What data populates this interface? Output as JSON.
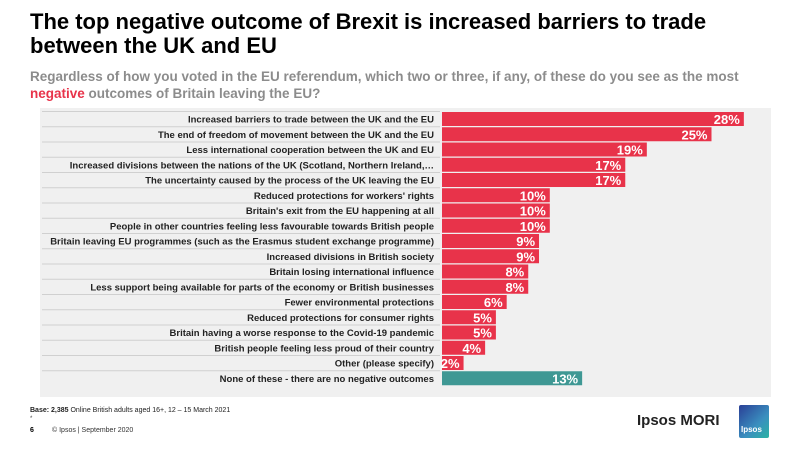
{
  "title": "The top negative outcome of Brexit is increased barriers to trade between the UK and EU",
  "subtitle": {
    "before": "Regardless of how you voted in the EU referendum, which two or three, if any, of these do you see as the most ",
    "highlight": "negative",
    "after": " outcomes of Britain leaving the EU?"
  },
  "chart_data": {
    "type": "bar",
    "orientation": "horizontal",
    "categories": [
      "Increased barriers to trade between the UK and the EU",
      "The end of freedom of movement between the UK and the EU",
      "Less international cooperation between the UK and EU",
      "Increased divisions between the nations of the UK (Scotland, Northern Ireland,…",
      "The uncertainty caused by the process of the UK leaving the EU",
      "Reduced protections for workers' rights",
      "Britain's exit from the EU happening at all",
      "People in other countries feeling less favourable towards British people",
      "Britain leaving EU programmes (such as the Erasmus student exchange programme)",
      "Increased divisions in British society",
      "Britain losing international influence",
      "Less support being available for parts of the economy or British businesses",
      "Fewer environmental protections",
      "Reduced protections for consumer rights",
      "Britain having a worse response to the Covid-19 pandemic",
      "British people feeling less proud of their country",
      "Other (please specify)",
      "None of these - there are no negative outcomes"
    ],
    "values": [
      28,
      25,
      19,
      17,
      17,
      10,
      10,
      10,
      9,
      9,
      8,
      8,
      6,
      5,
      5,
      4,
      2,
      13
    ],
    "value_labels": [
      "28%",
      "25%",
      "19%",
      "17%",
      "17%",
      "10%",
      "10%",
      "10%",
      "9%",
      "9%",
      "8%",
      "8%",
      "6%",
      "5%",
      "5%",
      "4%",
      "2%",
      "13%"
    ],
    "unit": "%",
    "colors": {
      "default": "#e8334a",
      "none_of_these": "#3f9894"
    },
    "xlim": [
      0,
      30
    ],
    "grid": false
  },
  "footer": {
    "base_label": "Base: 2,385",
    "base_text": " Online British adults aged 16+, 12 – 15 March 2021",
    "star": "*",
    "page": "6",
    "copyright": "© Ipsos | September 2020",
    "brand": "Ipsos MORI",
    "logo_text": "Ipsos"
  }
}
